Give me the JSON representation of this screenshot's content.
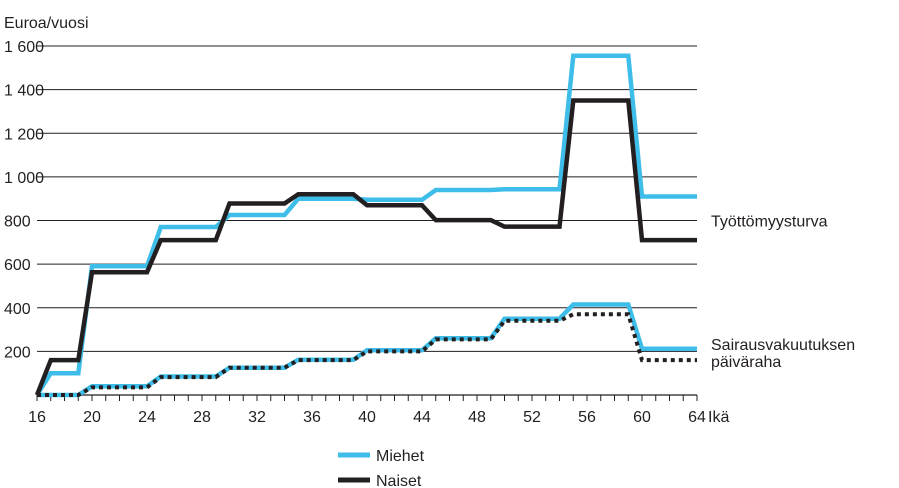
{
  "chart_data": {
    "type": "line",
    "ylabel": "Euroa/vuosi",
    "xlabel": "Ikä",
    "xlim": [
      16,
      64
    ],
    "ylim": [
      0,
      1600
    ],
    "x_ticks": [
      16,
      20,
      24,
      28,
      32,
      36,
      40,
      44,
      48,
      52,
      56,
      60,
      64
    ],
    "y_ticks": [
      {
        "value": 0,
        "label": ""
      },
      {
        "value": 200,
        "label": "200"
      },
      {
        "value": 400,
        "label": "400"
      },
      {
        "value": 600,
        "label": "600"
      },
      {
        "value": 800,
        "label": "800"
      },
      {
        "value": 1000,
        "label": "1 000"
      },
      {
        "value": 1200,
        "label": "1 200"
      },
      {
        "value": 1400,
        "label": "1 400"
      },
      {
        "value": 1600,
        "label": "1 600"
      }
    ],
    "grid": true,
    "legend_position": "bottom-center",
    "legend": [
      {
        "label": "Miehet",
        "color": "#3dbde8",
        "style": "solid"
      },
      {
        "label": "Naiset",
        "color": "#231f20",
        "style": "solid"
      }
    ],
    "annotations": [
      {
        "text": "Työttömyysturva",
        "y": 800
      },
      {
        "lines": [
          "Sairausvakuutuksen",
          "päiväraha"
        ],
        "y": 170
      }
    ],
    "series": [
      {
        "group": "Työttömyysturva",
        "legend": "Miehet",
        "color": "#3dbde8",
        "style": "solid",
        "points": [
          [
            16,
            0
          ],
          [
            17,
            100
          ],
          [
            19,
            100
          ],
          [
            20,
            590
          ],
          [
            24,
            590
          ],
          [
            25,
            770
          ],
          [
            29,
            770
          ],
          [
            30,
            825
          ],
          [
            34,
            825
          ],
          [
            35,
            900
          ],
          [
            39,
            900
          ],
          [
            40,
            895
          ],
          [
            44,
            895
          ],
          [
            45,
            940
          ],
          [
            49,
            940
          ],
          [
            50,
            943
          ],
          [
            54,
            943
          ],
          [
            55,
            1555
          ],
          [
            59,
            1555
          ],
          [
            60,
            910
          ],
          [
            64,
            910
          ]
        ]
      },
      {
        "group": "Työttömyysturva",
        "legend": "Naiset",
        "color": "#231f20",
        "style": "solid",
        "points": [
          [
            16,
            0
          ],
          [
            17,
            160
          ],
          [
            19,
            160
          ],
          [
            20,
            563
          ],
          [
            24,
            563
          ],
          [
            25,
            710
          ],
          [
            29,
            710
          ],
          [
            30,
            878
          ],
          [
            34,
            878
          ],
          [
            35,
            920
          ],
          [
            39,
            920
          ],
          [
            40,
            870
          ],
          [
            44,
            870
          ],
          [
            45,
            802
          ],
          [
            49,
            802
          ],
          [
            50,
            772
          ],
          [
            54,
            772
          ],
          [
            55,
            1350
          ],
          [
            59,
            1350
          ],
          [
            60,
            710
          ],
          [
            64,
            710
          ]
        ]
      },
      {
        "group": "Sairausvakuutuksen päiväraha",
        "legend": "Miehet",
        "color": "#3dbde8",
        "style": "solid",
        "points": [
          [
            16,
            0
          ],
          [
            19,
            0
          ],
          [
            20,
            40
          ],
          [
            24,
            40
          ],
          [
            25,
            85
          ],
          [
            29,
            85
          ],
          [
            30,
            125
          ],
          [
            34,
            125
          ],
          [
            35,
            162
          ],
          [
            39,
            162
          ],
          [
            40,
            205
          ],
          [
            44,
            205
          ],
          [
            45,
            260
          ],
          [
            49,
            260
          ],
          [
            50,
            350
          ],
          [
            54,
            350
          ],
          [
            55,
            415
          ],
          [
            59,
            415
          ],
          [
            60,
            212
          ],
          [
            64,
            212
          ]
        ]
      },
      {
        "group": "Sairausvakuutuksen päiväraha",
        "legend": "Naiset",
        "color": "#231f20",
        "style": "dotted",
        "points": [
          [
            16,
            0
          ],
          [
            19,
            0
          ],
          [
            20,
            35
          ],
          [
            24,
            35
          ],
          [
            25,
            82
          ],
          [
            29,
            82
          ],
          [
            30,
            125
          ],
          [
            34,
            125
          ],
          [
            35,
            160
          ],
          [
            39,
            160
          ],
          [
            40,
            200
          ],
          [
            44,
            200
          ],
          [
            45,
            255
          ],
          [
            49,
            255
          ],
          [
            50,
            340
          ],
          [
            54,
            340
          ],
          [
            55,
            370
          ],
          [
            59,
            370
          ],
          [
            60,
            160
          ],
          [
            64,
            160
          ]
        ]
      }
    ]
  }
}
